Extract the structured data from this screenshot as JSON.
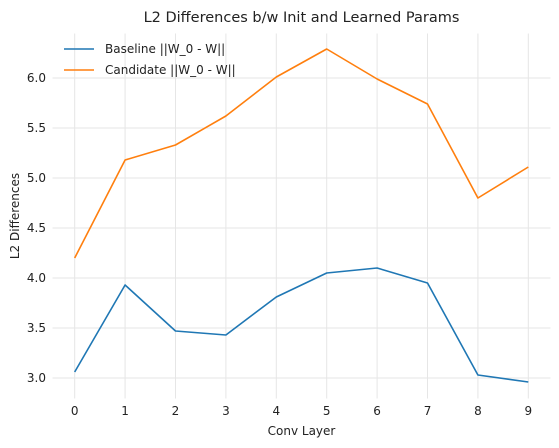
{
  "chart_data": {
    "type": "line",
    "title": "L2 Differences b/w Init and Learned Params",
    "xlabel": "Conv Layer",
    "ylabel": "L2 Differences",
    "x": [
      0,
      1,
      2,
      3,
      4,
      5,
      6,
      7,
      8,
      9
    ],
    "xticks": [
      "0",
      "1",
      "2",
      "3",
      "4",
      "5",
      "6",
      "7",
      "8",
      "9"
    ],
    "yticks": [
      "3.0",
      "3.5",
      "4.0",
      "4.5",
      "5.0",
      "5.5",
      "6.0"
    ],
    "ylim": [
      2.79,
      6.45
    ],
    "xlim": [
      -0.45,
      9.45
    ],
    "grid": true,
    "legend_position": "top-left",
    "series": [
      {
        "name": "Baseline ||W_0 - W||",
        "color": "#1f77b4",
        "values": [
          3.06,
          3.93,
          3.47,
          3.43,
          3.81,
          4.05,
          4.1,
          3.95,
          3.03,
          2.96
        ]
      },
      {
        "name": "Candidate ||W_0 - W||",
        "color": "#ff7f0e",
        "values": [
          4.2,
          5.18,
          5.33,
          5.62,
          6.01,
          6.29,
          5.99,
          5.74,
          4.8,
          5.11
        ]
      }
    ]
  }
}
